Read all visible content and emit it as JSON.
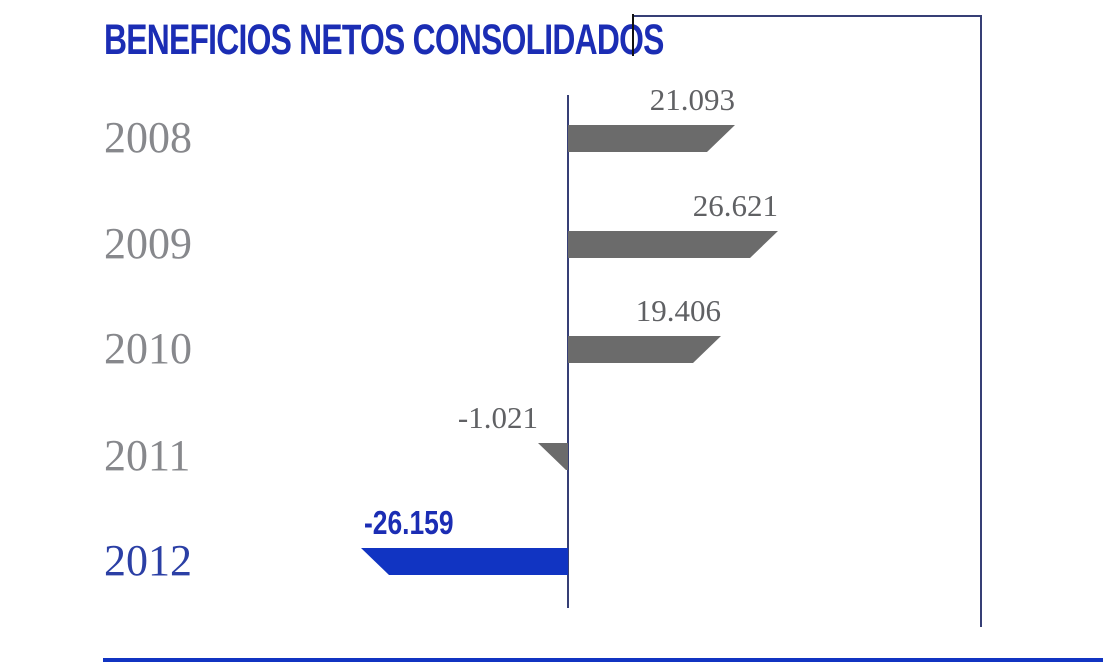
{
  "title": "BENEFICIOS NETOS CONSOLIDADOS",
  "colors": {
    "title_blue": "#1b2db4",
    "bar_blue": "#1134c2",
    "bar_gray": "#6b6b6b",
    "year_gray": "#87888c",
    "year_blue": "#2b3fa5",
    "value_gray": "#606164",
    "frame_navy": "#363f76",
    "cursor_black": "#111111",
    "bottom_line_blue": "#1134c2"
  },
  "chart_data": {
    "type": "bar",
    "orientation": "horizontal",
    "title": "BENEFICIOS NETOS CONSOLIDADOS",
    "categories": [
      "2008",
      "2009",
      "2010",
      "2011",
      "2012"
    ],
    "values": [
      21093,
      26621,
      19406,
      -1021,
      -26159
    ],
    "xlim": [
      -30000,
      30000
    ],
    "grid": false,
    "legend": false,
    "zero_axis": true,
    "highlight_category": "2012",
    "rows": [
      {
        "year": "2008",
        "value": 21093,
        "label": "21.093",
        "highlight": false
      },
      {
        "year": "2009",
        "value": 26621,
        "label": "26.621",
        "highlight": false
      },
      {
        "year": "2010",
        "value": 19406,
        "label": "19.406",
        "highlight": false
      },
      {
        "year": "2011",
        "value": -1021,
        "label": "-1.021",
        "highlight": false
      },
      {
        "year": "2012",
        "value": -26159,
        "label": "-26.159",
        "highlight": true
      }
    ]
  }
}
